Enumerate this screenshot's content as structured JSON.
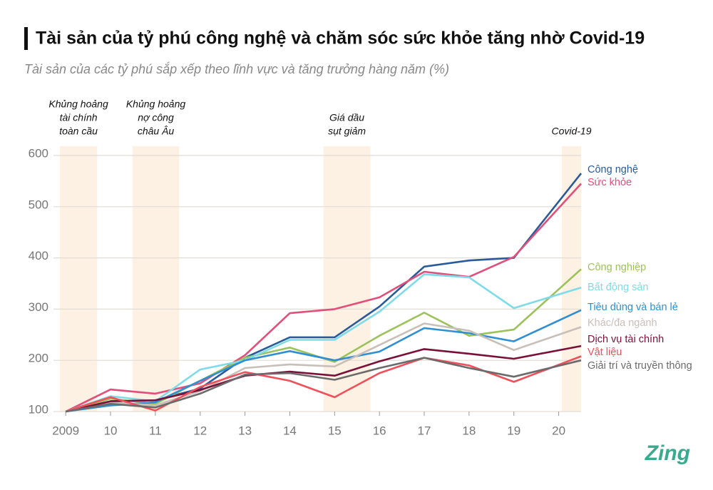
{
  "chart_data": {
    "type": "line",
    "title": "Tài sản của tỷ phú công nghệ và chăm sóc sức khỏe tăng nhờ Covid-19",
    "subtitle": "Tài sản của các tỷ phú sắp xếp theo lĩnh vực và tăng trưởng hàng năm (%)",
    "x": [
      2009,
      2010,
      2011,
      2012,
      2013,
      2014,
      2015,
      2016,
      2017,
      2018,
      2019,
      2020.5
    ],
    "xlim": [
      2008.87,
      2020.5
    ],
    "xticks": [
      2009,
      {
        "value": 2010,
        "label": "10"
      },
      {
        "value": 2011,
        "label": "11"
      },
      {
        "value": 2012,
        "label": "12"
      },
      {
        "value": 2013,
        "label": "13"
      },
      {
        "value": 2014,
        "label": "14"
      },
      {
        "value": 2015,
        "label": "15"
      },
      {
        "value": 2016,
        "label": "16"
      },
      {
        "value": 2017,
        "label": "17"
      },
      {
        "value": 2018,
        "label": "18"
      },
      {
        "value": 2019,
        "label": "19"
      },
      {
        "value": 2020,
        "label": "20"
      }
    ],
    "ylim": [
      100,
      600
    ],
    "yticks": [
      100,
      200,
      300,
      400,
      500,
      600
    ],
    "grid": true,
    "periods": [
      {
        "label": [
          "Khủng hoảng",
          "tài chính",
          "toàn cầu"
        ],
        "start": 2008.87,
        "end": 2009.7
      },
      {
        "label": [
          "Khủng hoảng",
          "nợ công",
          "châu Âu"
        ],
        "start": 2010.49,
        "end": 2011.53
      },
      {
        "label": [
          "Giá dầu",
          "sụt giảm"
        ],
        "start": 2014.75,
        "end": 2015.8
      },
      {
        "label": [
          "Covid-19"
        ],
        "start": 2020.07,
        "end": 2020.5
      }
    ],
    "series": [
      {
        "name": "Công nghệ",
        "color": "#2a5a9a",
        "values": [
          100,
          120,
          122,
          145,
          205,
          245,
          245,
          305,
          383,
          395,
          400,
          565
        ]
      },
      {
        "name": "Sức khỏe",
        "color": "#e0507a",
        "values": [
          100,
          143,
          135,
          155,
          210,
          292,
          300,
          323,
          373,
          363,
          402,
          545
        ]
      },
      {
        "name": "Công nghiệp",
        "color": "#9cc25a",
        "values": [
          100,
          125,
          115,
          160,
          205,
          225,
          197,
          248,
          293,
          248,
          260,
          378
        ]
      },
      {
        "name": "Bất động sản",
        "color": "#7fdbe8",
        "values": [
          100,
          130,
          120,
          182,
          200,
          240,
          240,
          295,
          368,
          362,
          302,
          342
        ]
      },
      {
        "name": "Tiêu dùng và bán lẻ",
        "color": "#2f8fd0",
        "values": [
          100,
          112,
          118,
          160,
          200,
          218,
          200,
          217,
          263,
          253,
          237,
          298
        ]
      },
      {
        "name": "Khác/đa ngành",
        "color": "#c8bfb8",
        "values": [
          100,
          118,
          112,
          140,
          185,
          192,
          188,
          230,
          272,
          258,
          220,
          265
        ]
      },
      {
        "name": "Dịch vụ tài chính",
        "color": "#7a1038",
        "values": [
          100,
          120,
          122,
          142,
          170,
          178,
          170,
          198,
          222,
          213,
          203,
          228
        ]
      },
      {
        "name": "Vật liệu",
        "color": "#f0505a",
        "values": [
          100,
          128,
          102,
          148,
          177,
          160,
          128,
          175,
          205,
          190,
          158,
          208
        ]
      },
      {
        "name": "Giải trí và truyền thông",
        "color": "#6b6b6b",
        "values": [
          100,
          115,
          108,
          135,
          172,
          175,
          162,
          185,
          205,
          185,
          168,
          200
        ]
      }
    ]
  },
  "logo": "Zing"
}
